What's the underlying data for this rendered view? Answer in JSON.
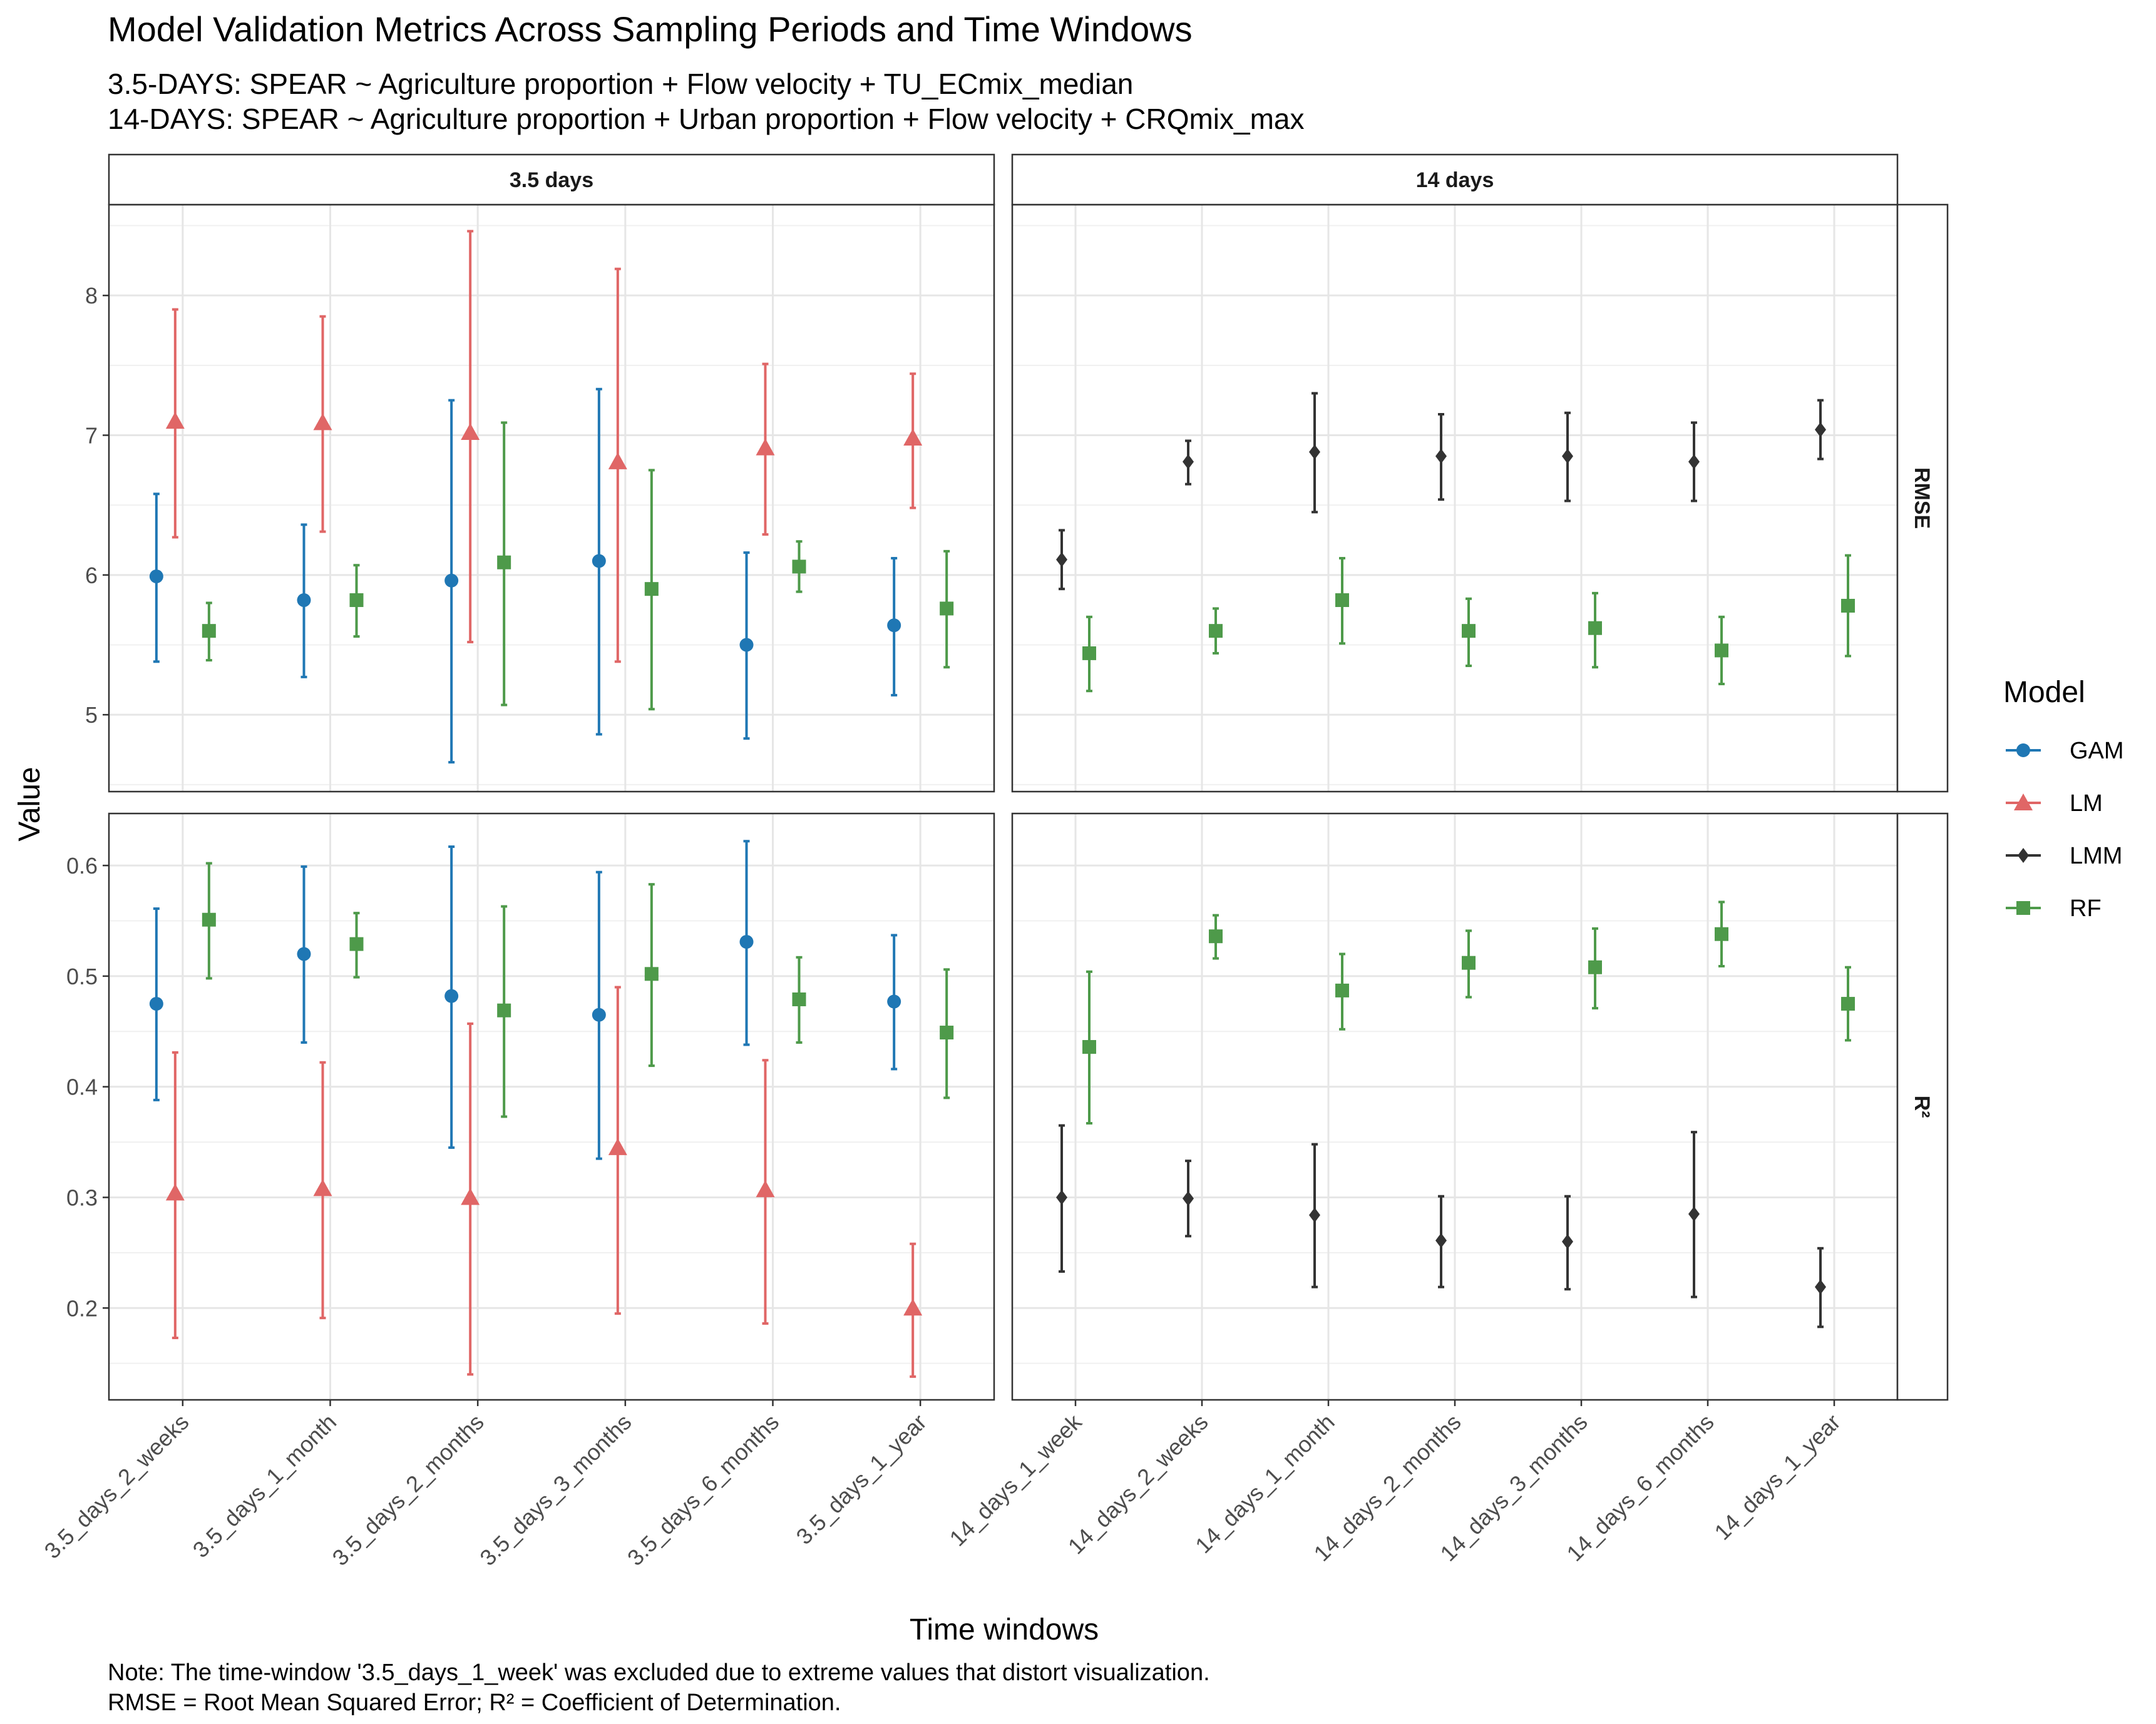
{
  "chart_data": {
    "type": "scatter",
    "title": "Model Validation Metrics Across Sampling Periods and Time Windows",
    "subtitle_lines": [
      "3.5-DAYS: SPEAR ~ Agriculture proportion + Flow velocity + TU_ECmix_median",
      "14-DAYS: SPEAR  ~ Agriculture proportion + Urban proportion + Flow velocity + CRQmix_max"
    ],
    "xlabel": "Time windows",
    "ylabel": "Value",
    "caption_lines": [
      "Note: The time-window '3.5_days_1_week' was excluded due to extreme values that distort visualization.",
      "RMSE = Root Mean Squared Error; R² = Coefficient of Determination."
    ],
    "legend": {
      "title": "Model",
      "position": "right",
      "items": [
        {
          "name": "GAM",
          "color": "#1f77b4",
          "shape": "circle"
        },
        {
          "name": "LM",
          "color": "#e06666",
          "shape": "triangle"
        },
        {
          "name": "LMM",
          "color": "#333333",
          "shape": "diamond"
        },
        {
          "name": "RF",
          "color": "#4e9a4a",
          "shape": "square"
        }
      ]
    },
    "grid": true,
    "facet_columns": [
      {
        "label": "3.5 days",
        "categories": [
          "3.5_days_2_weeks",
          "3.5_days_1_month",
          "3.5_days_2_months",
          "3.5_days_3_months",
          "3.5_days_6_months",
          "3.5_days_1_year"
        ],
        "models": [
          "GAM",
          "LM",
          "RF"
        ]
      },
      {
        "label": "14 days",
        "categories": [
          "14_days_1_week",
          "14_days_2_weeks",
          "14_days_1_month",
          "14_days_2_months",
          "14_days_3_months",
          "14_days_6_months",
          "14_days_1_year"
        ],
        "models": [
          "LMM",
          "RF"
        ]
      }
    ],
    "facet_rows": [
      {
        "label": "RMSE",
        "ylim": [
          4.45,
          8.65
        ],
        "ticks": [
          5,
          6,
          7,
          8
        ],
        "tick_labels": [
          "5",
          "6",
          "7",
          "8"
        ],
        "panels": [
          {
            "column": "3.5 days",
            "series": [
              {
                "model": "GAM",
                "values": [
                  [
                    5.99,
                    5.38,
                    6.58
                  ],
                  [
                    5.82,
                    5.27,
                    6.36
                  ],
                  [
                    5.96,
                    4.66,
                    7.25
                  ],
                  [
                    6.1,
                    4.86,
                    7.33
                  ],
                  [
                    5.5,
                    4.83,
                    6.16
                  ],
                  [
                    5.64,
                    5.14,
                    6.12
                  ]
                ]
              },
              {
                "model": "LM",
                "values": [
                  [
                    7.1,
                    6.27,
                    7.9
                  ],
                  [
                    7.09,
                    6.31,
                    7.85
                  ],
                  [
                    7.02,
                    5.52,
                    8.46
                  ],
                  [
                    6.81,
                    5.38,
                    8.19
                  ],
                  [
                    6.91,
                    6.29,
                    7.51
                  ],
                  [
                    6.98,
                    6.48,
                    7.44
                  ]
                ]
              },
              {
                "model": "RF",
                "values": [
                  [
                    5.6,
                    5.39,
                    5.8
                  ],
                  [
                    5.82,
                    5.56,
                    6.07
                  ],
                  [
                    6.09,
                    5.07,
                    7.09
                  ],
                  [
                    5.9,
                    5.04,
                    6.75
                  ],
                  [
                    6.06,
                    5.88,
                    6.24
                  ],
                  [
                    5.76,
                    5.34,
                    6.17
                  ]
                ]
              }
            ]
          },
          {
            "column": "14 days",
            "series": [
              {
                "model": "LMM",
                "values": [
                  [
                    6.11,
                    5.9,
                    6.32
                  ],
                  [
                    6.81,
                    6.65,
                    6.96
                  ],
                  [
                    6.88,
                    6.45,
                    7.3
                  ],
                  [
                    6.85,
                    6.54,
                    7.15
                  ],
                  [
                    6.85,
                    6.53,
                    7.16
                  ],
                  [
                    6.81,
                    6.53,
                    7.09
                  ],
                  [
                    7.04,
                    6.83,
                    7.25
                  ]
                ]
              },
              {
                "model": "RF",
                "values": [
                  [
                    5.44,
                    5.17,
                    5.7
                  ],
                  [
                    5.6,
                    5.44,
                    5.76
                  ],
                  [
                    5.82,
                    5.51,
                    6.12
                  ],
                  [
                    5.6,
                    5.35,
                    5.83
                  ],
                  [
                    5.62,
                    5.34,
                    5.87
                  ],
                  [
                    5.46,
                    5.22,
                    5.7
                  ],
                  [
                    5.78,
                    5.42,
                    6.14
                  ]
                ]
              }
            ]
          }
        ]
      },
      {
        "label": "R²",
        "ylim": [
          0.117,
          0.647
        ],
        "ticks": [
          0.2,
          0.3,
          0.4,
          0.5,
          0.6
        ],
        "tick_labels": [
          "0.2",
          "0.3",
          "0.4",
          "0.5",
          "0.6"
        ],
        "panels": [
          {
            "column": "3.5 days",
            "series": [
              {
                "model": "GAM",
                "values": [
                  [
                    0.475,
                    0.388,
                    0.561
                  ],
                  [
                    0.52,
                    0.44,
                    0.599
                  ],
                  [
                    0.482,
                    0.345,
                    0.617
                  ],
                  [
                    0.465,
                    0.335,
                    0.594
                  ],
                  [
                    0.531,
                    0.438,
                    0.622
                  ],
                  [
                    0.477,
                    0.416,
                    0.537
                  ]
                ]
              },
              {
                "model": "LM",
                "values": [
                  [
                    0.304,
                    0.173,
                    0.431
                  ],
                  [
                    0.308,
                    0.191,
                    0.422
                  ],
                  [
                    0.3,
                    0.14,
                    0.457
                  ],
                  [
                    0.345,
                    0.195,
                    0.49
                  ],
                  [
                    0.307,
                    0.186,
                    0.424
                  ],
                  [
                    0.2,
                    0.138,
                    0.258
                  ]
                ]
              },
              {
                "model": "RF",
                "values": [
                  [
                    0.551,
                    0.498,
                    0.602
                  ],
                  [
                    0.529,
                    0.499,
                    0.557
                  ],
                  [
                    0.469,
                    0.373,
                    0.563
                  ],
                  [
                    0.502,
                    0.419,
                    0.583
                  ],
                  [
                    0.479,
                    0.44,
                    0.517
                  ],
                  [
                    0.449,
                    0.39,
                    0.506
                  ]
                ]
              }
            ]
          },
          {
            "column": "14 days",
            "series": [
              {
                "model": "LMM",
                "values": [
                  [
                    0.3,
                    0.233,
                    0.365
                  ],
                  [
                    0.299,
                    0.265,
                    0.333
                  ],
                  [
                    0.284,
                    0.219,
                    0.348
                  ],
                  [
                    0.261,
                    0.219,
                    0.301
                  ],
                  [
                    0.26,
                    0.217,
                    0.301
                  ],
                  [
                    0.285,
                    0.21,
                    0.359
                  ],
                  [
                    0.219,
                    0.183,
                    0.254
                  ]
                ]
              },
              {
                "model": "RF",
                "values": [
                  [
                    0.436,
                    0.367,
                    0.504
                  ],
                  [
                    0.536,
                    0.516,
                    0.555
                  ],
                  [
                    0.487,
                    0.452,
                    0.52
                  ],
                  [
                    0.512,
                    0.481,
                    0.541
                  ],
                  [
                    0.508,
                    0.471,
                    0.543
                  ],
                  [
                    0.538,
                    0.509,
                    0.567
                  ],
                  [
                    0.475,
                    0.442,
                    0.508
                  ]
                ]
              }
            ]
          }
        ]
      }
    ]
  }
}
